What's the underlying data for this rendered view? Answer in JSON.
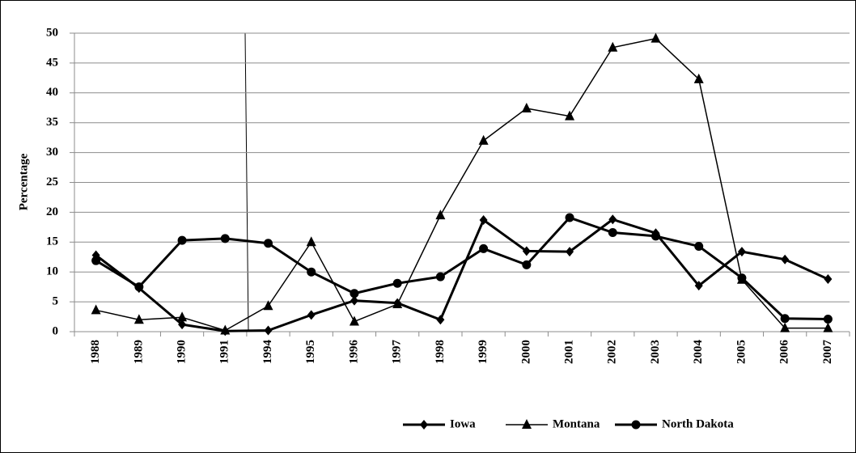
{
  "chart_data": {
    "type": "line",
    "y_label": "Percentage",
    "categories": [
      "1988",
      "1989",
      "1990",
      "1991",
      "1994",
      "1995",
      "1996",
      "1997",
      "1998",
      "1999",
      "2000",
      "2001",
      "2002",
      "2003",
      "2004",
      "2005",
      "2006",
      "2007"
    ],
    "series": [
      {
        "name": "Iowa",
        "color": "#000000",
        "marker": "diamond",
        "values": [
          12.8,
          7.3,
          1.2,
          0.1,
          0.2,
          2.8,
          5.2,
          4.8,
          2.0,
          18.7,
          13.5,
          13.4,
          18.8,
          16.5,
          7.7,
          13.4,
          12.1,
          8.8
        ]
      },
      {
        "name": "Montana",
        "color": "#000000",
        "marker": "triangle",
        "values": [
          3.6,
          2.0,
          2.4,
          0.2,
          4.3,
          15.0,
          1.7,
          4.6,
          19.5,
          32.0,
          37.4,
          36.1,
          47.6,
          49.1,
          42.3,
          8.7,
          0.6,
          0.6
        ]
      },
      {
        "name": "North Dakota",
        "color": "#000000",
        "marker": "circle",
        "values": [
          11.9,
          7.5,
          15.3,
          15.6,
          14.8,
          10.0,
          6.4,
          8.1,
          9.2,
          13.9,
          11.2,
          19.1,
          16.6,
          16.0,
          14.3,
          9.0,
          2.2,
          2.1
        ]
      }
    ],
    "ylim": [
      0,
      50
    ],
    "yticks": [
      0,
      5,
      10,
      15,
      20,
      25,
      30,
      35,
      40,
      45,
      50
    ],
    "grid": true,
    "legend": "bottom"
  }
}
